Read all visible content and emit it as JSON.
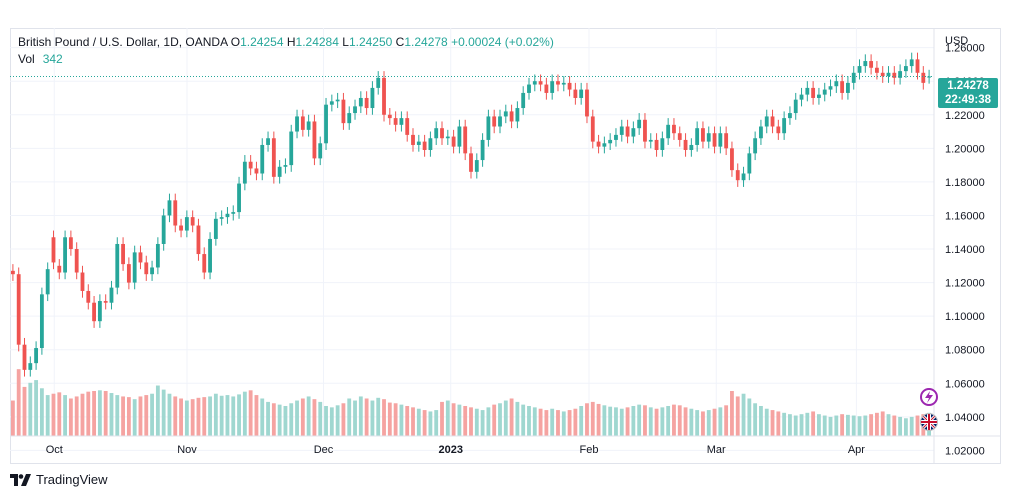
{
  "legend": {
    "symbol": "British Pound / U.S. Dollar, 1D, OANDA",
    "o_label": "O",
    "o_value": "1.24254",
    "h_label": "H",
    "h_value": "1.24284",
    "l_label": "L",
    "l_value": "1.24250",
    "c_label": "C",
    "c_value": "1.24278",
    "change": "+0.00024 (+0.02%)"
  },
  "volume": {
    "label": "Vol",
    "value": "342"
  },
  "price_axis": {
    "currency": "USD"
  },
  "price_tag": {
    "price": "1.24278",
    "countdown": "22:49:38"
  },
  "brand": {
    "name": "TradingView"
  },
  "icons": {
    "lightning": "lightning-icon",
    "flag": "uk-flag-icon",
    "logo": "tradingview-logo-icon"
  },
  "colors": {
    "up": "#26a69a",
    "down": "#ef5350",
    "up_volume": "#9fd7d0",
    "down_volume": "#f5a3a1"
  },
  "chart_data": {
    "type": "candlestick",
    "title": "British Pound / U.S. Dollar, 1D, OANDA",
    "x_ticks": [
      "Oct",
      "Nov",
      "Dec",
      "2023",
      "Feb",
      "Mar",
      "Apr"
    ],
    "y_ticks": [
      "1.02000",
      "1.04000",
      "1.06000",
      "1.08000",
      "1.10000",
      "1.12000",
      "1.14000",
      "1.16000",
      "1.18000",
      "1.20000",
      "1.22000",
      "1.24000",
      "1.26000"
    ],
    "y_range": [
      1.0125,
      1.2705
    ],
    "grid": true,
    "closes": [
      1.125,
      1.083,
      1.068,
      1.072,
      1.081,
      1.113,
      1.128,
      1.132,
      1.126,
      1.147,
      1.14,
      1.126,
      1.115,
      1.108,
      1.097,
      1.109,
      1.108,
      1.117,
      1.143,
      1.131,
      1.12,
      1.138,
      1.132,
      1.125,
      1.129,
      1.143,
      1.16,
      1.169,
      1.154,
      1.151,
      1.159,
      1.154,
      1.137,
      1.126,
      1.146,
      1.158,
      1.159,
      1.161,
      1.162,
      1.179,
      1.192,
      1.188,
      1.185,
      1.202,
      1.206,
      1.183,
      1.189,
      1.19,
      1.21,
      1.219,
      1.211,
      1.216,
      1.194,
      1.203,
      1.226,
      1.228,
      1.229,
      1.215,
      1.221,
      1.225,
      1.23,
      1.224,
      1.236,
      1.242,
      1.22,
      1.218,
      1.214,
      1.218,
      1.208,
      1.202,
      1.204,
      1.199,
      1.206,
      1.212,
      1.206,
      1.207,
      1.201,
      1.213,
      1.197,
      1.186,
      1.193,
      1.205,
      1.219,
      1.213,
      1.219,
      1.222,
      1.216,
      1.224,
      1.233,
      1.238,
      1.24,
      1.238,
      1.233,
      1.24,
      1.238,
      1.239,
      1.235,
      1.23,
      1.235,
      1.219,
      1.204,
      1.201,
      1.203,
      1.205,
      1.208,
      1.213,
      1.207,
      1.212,
      1.217,
      1.204,
      1.205,
      1.199,
      1.206,
      1.214,
      1.209,
      1.205,
      1.199,
      1.202,
      1.212,
      1.204,
      1.209,
      1.201,
      1.209,
      1.2,
      1.187,
      1.181,
      1.185,
      1.197,
      1.206,
      1.213,
      1.219,
      1.213,
      1.209,
      1.218,
      1.221,
      1.229,
      1.232,
      1.236,
      1.23,
      1.232,
      1.235,
      1.237,
      1.24,
      1.233,
      1.239,
      1.245,
      1.249,
      1.252,
      1.248,
      1.245,
      1.243,
      1.245,
      1.242,
      1.246,
      1.249,
      1.253,
      1.245,
      1.239,
      1.24278
    ],
    "opens": [
      1.127,
      1.125,
      1.083,
      1.068,
      1.072,
      1.081,
      1.113,
      1.147,
      1.13,
      1.126,
      1.147,
      1.14,
      1.126,
      1.115,
      1.108,
      1.097,
      1.109,
      1.108,
      1.117,
      1.143,
      1.131,
      1.12,
      1.138,
      1.132,
      1.125,
      1.129,
      1.143,
      1.16,
      1.169,
      1.154,
      1.151,
      1.159,
      1.154,
      1.137,
      1.126,
      1.146,
      1.158,
      1.159,
      1.161,
      1.162,
      1.179,
      1.192,
      1.188,
      1.185,
      1.202,
      1.206,
      1.183,
      1.189,
      1.19,
      1.21,
      1.219,
      1.211,
      1.216,
      1.194,
      1.203,
      1.226,
      1.228,
      1.229,
      1.215,
      1.221,
      1.225,
      1.23,
      1.224,
      1.236,
      1.242,
      1.22,
      1.218,
      1.214,
      1.218,
      1.208,
      1.202,
      1.204,
      1.199,
      1.206,
      1.212,
      1.206,
      1.207,
      1.201,
      1.213,
      1.197,
      1.186,
      1.193,
      1.205,
      1.219,
      1.213,
      1.219,
      1.222,
      1.216,
      1.224,
      1.233,
      1.238,
      1.24,
      1.238,
      1.233,
      1.24,
      1.238,
      1.239,
      1.235,
      1.23,
      1.235,
      1.219,
      1.204,
      1.201,
      1.203,
      1.205,
      1.208,
      1.213,
      1.207,
      1.212,
      1.217,
      1.204,
      1.205,
      1.199,
      1.206,
      1.214,
      1.209,
      1.205,
      1.199,
      1.202,
      1.212,
      1.204,
      1.209,
      1.201,
      1.209,
      1.2,
      1.187,
      1.181,
      1.185,
      1.197,
      1.206,
      1.213,
      1.219,
      1.213,
      1.209,
      1.218,
      1.221,
      1.229,
      1.232,
      1.236,
      1.23,
      1.232,
      1.235,
      1.237,
      1.24,
      1.233,
      1.239,
      1.245,
      1.249,
      1.252,
      1.248,
      1.245,
      1.243,
      1.245,
      1.242,
      1.246,
      1.249,
      1.253,
      1.245,
      1.24254
    ],
    "volume_levels": [
      0.52,
      0.98,
      0.72,
      0.78,
      0.82,
      0.7,
      0.6,
      0.62,
      0.64,
      0.6,
      0.55,
      0.58,
      0.62,
      0.65,
      0.66,
      0.67,
      0.66,
      0.63,
      0.6,
      0.58,
      0.57,
      0.54,
      0.58,
      0.6,
      0.62,
      0.74,
      0.68,
      0.62,
      0.58,
      0.55,
      0.52,
      0.54,
      0.56,
      0.57,
      0.58,
      0.62,
      0.59,
      0.6,
      0.58,
      0.61,
      0.65,
      0.67,
      0.6,
      0.55,
      0.5,
      0.48,
      0.46,
      0.44,
      0.48,
      0.52,
      0.55,
      0.58,
      0.54,
      0.5,
      0.44,
      0.42,
      0.45,
      0.48,
      0.55,
      0.52,
      0.58,
      0.55,
      0.52,
      0.56,
      0.54,
      0.49,
      0.48,
      0.46,
      0.44,
      0.42,
      0.4,
      0.38,
      0.36,
      0.38,
      0.5,
      0.52,
      0.48,
      0.46,
      0.44,
      0.42,
      0.4,
      0.38,
      0.42,
      0.46,
      0.48,
      0.52,
      0.55,
      0.5,
      0.46,
      0.44,
      0.42,
      0.4,
      0.38,
      0.4,
      0.38,
      0.36,
      0.38,
      0.4,
      0.44,
      0.48,
      0.5,
      0.47,
      0.45,
      0.43,
      0.42,
      0.4,
      0.42,
      0.44,
      0.46,
      0.45,
      0.42,
      0.4,
      0.42,
      0.44,
      0.46,
      0.45,
      0.42,
      0.4,
      0.38,
      0.36,
      0.38,
      0.4,
      0.42,
      0.45,
      0.66,
      0.58,
      0.62,
      0.55,
      0.48,
      0.44,
      0.4,
      0.38,
      0.36,
      0.34,
      0.32,
      0.3,
      0.32,
      0.34,
      0.36,
      0.32,
      0.3,
      0.28,
      0.3,
      0.32,
      0.31,
      0.3,
      0.29,
      0.3,
      0.32,
      0.34,
      0.36,
      0.32,
      0.3,
      0.28,
      0.26,
      0.28,
      0.3,
      0.32,
      0.34,
      0.36,
      0.38,
      0.35
    ]
  }
}
